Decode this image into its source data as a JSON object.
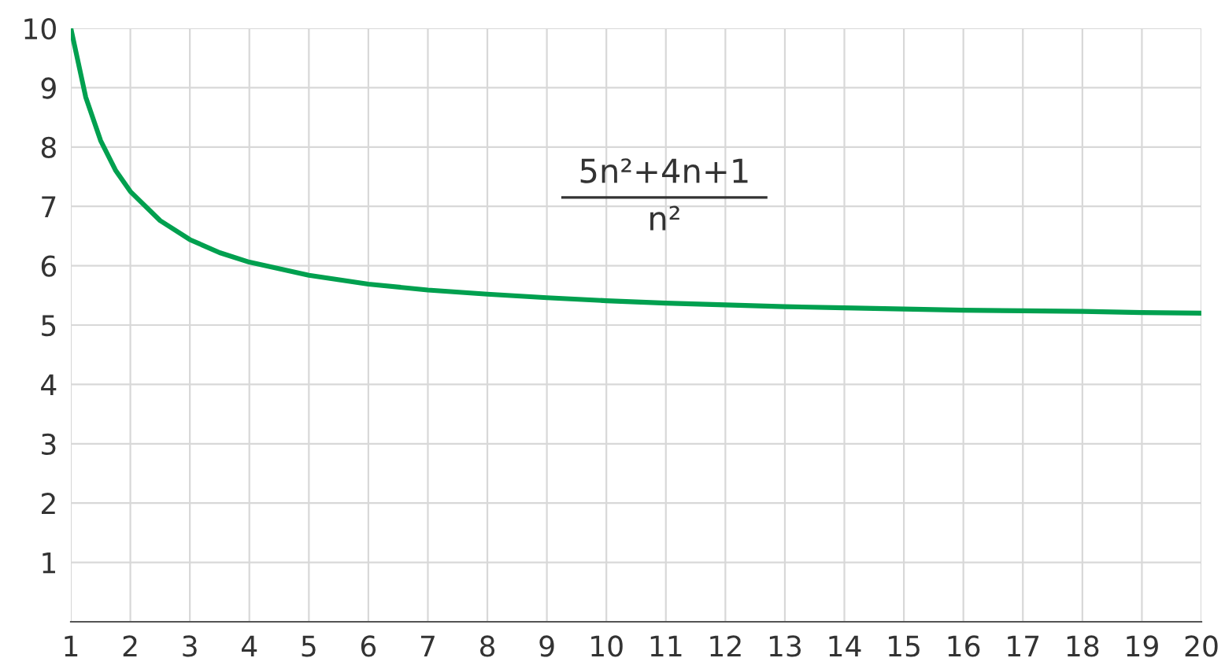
{
  "chart_data": {
    "type": "line",
    "x": [
      1,
      1.25,
      1.5,
      1.75,
      2,
      2.5,
      3,
      3.5,
      4,
      5,
      6,
      7,
      8,
      9,
      10,
      11,
      12,
      13,
      14,
      15,
      16,
      17,
      18,
      19,
      20
    ],
    "series": [
      {
        "color": "#00a04f",
        "values": [
          10,
          8.84,
          8.11,
          7.61,
          7.25,
          6.76,
          6.44,
          6.22,
          6.06,
          5.84,
          5.69,
          5.59,
          5.52,
          5.46,
          5.41,
          5.37,
          5.34,
          5.31,
          5.29,
          5.27,
          5.25,
          5.24,
          5.23,
          5.21,
          5.2
        ]
      }
    ],
    "annotations": [
      "5n²+4n+1",
      "n²"
    ],
    "xlim": [
      1,
      20
    ],
    "xticks": [
      1,
      2,
      3,
      4,
      5,
      6,
      7,
      8,
      9,
      10,
      11,
      12,
      13,
      14,
      15,
      16,
      17,
      18,
      19,
      20
    ],
    "ylim": [
      0,
      10
    ],
    "yticks": [
      {
        "value": 0,
        "label": null
      },
      1,
      2,
      3,
      4,
      5,
      6,
      7,
      8,
      9,
      10
    ],
    "grid": true,
    "legend": false,
    "marker": "none",
    "line_style": "solid"
  }
}
